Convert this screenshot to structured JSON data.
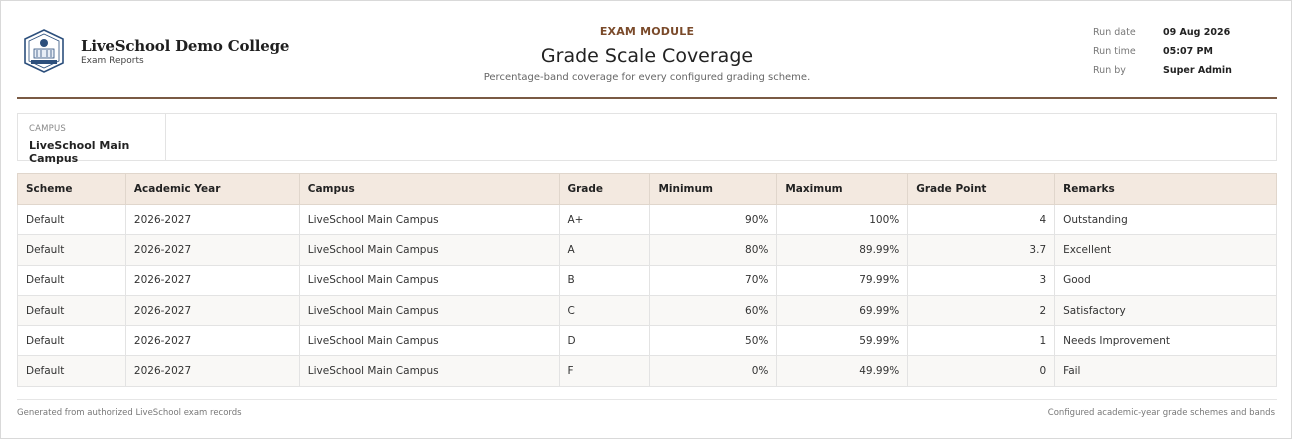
{
  "header": {
    "logo_icon": "college-crest-icon",
    "college_name": "LiveSchool Demo College",
    "college_sub": "Exam Reports",
    "module": "EXAM MODULE",
    "title": "Grade Scale Coverage",
    "subtitle": "Percentage-band coverage for every configured grading scheme.",
    "meta": [
      {
        "label": "Run date",
        "value": "09 Aug 2026"
      },
      {
        "label": "Run time",
        "value": "05:07 PM"
      },
      {
        "label": "Run by",
        "value": "Super Admin"
      }
    ]
  },
  "filter": {
    "label": "CAMPUS",
    "value": "LiveSchool Main Campus"
  },
  "table": {
    "columns": [
      "Scheme",
      "Academic Year",
      "Campus",
      "Grade",
      "Minimum",
      "Maximum",
      "Grade Point",
      "Remarks"
    ],
    "rows": [
      [
        "Default",
        "2026-2027",
        "LiveSchool Main Campus",
        "A+",
        "90%",
        "100%",
        "4",
        "Outstanding"
      ],
      [
        "Default",
        "2026-2027",
        "LiveSchool Main Campus",
        "A",
        "80%",
        "89.99%",
        "3.7",
        "Excellent"
      ],
      [
        "Default",
        "2026-2027",
        "LiveSchool Main Campus",
        "B",
        "70%",
        "79.99%",
        "3",
        "Good"
      ],
      [
        "Default",
        "2026-2027",
        "LiveSchool Main Campus",
        "C",
        "60%",
        "69.99%",
        "2",
        "Satisfactory"
      ],
      [
        "Default",
        "2026-2027",
        "LiveSchool Main Campus",
        "D",
        "50%",
        "59.99%",
        "1",
        "Needs Improvement"
      ],
      [
        "Default",
        "2026-2027",
        "LiveSchool Main Campus",
        "F",
        "0%",
        "49.99%",
        "0",
        "Fail"
      ]
    ]
  },
  "footer": {
    "left": "Generated from authorized LiveSchool exam records",
    "right": "Configured academic-year grade schemes and bands"
  },
  "colors": {
    "accent": "#7a4a2a",
    "rule": "#7a5a44",
    "header_bg": "#f3e9e0"
  }
}
